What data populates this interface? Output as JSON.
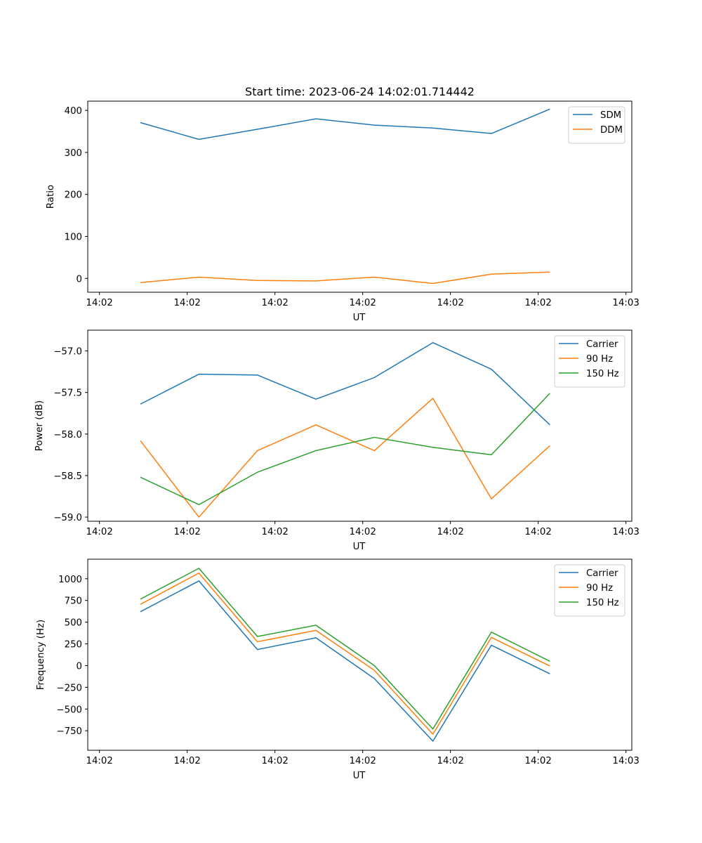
{
  "chart_data": [
    {
      "type": "line",
      "title": "Start time: 2023-06-24 14:02:01.714442",
      "xlabel": "UT",
      "ylabel": "Ratio",
      "x_tick_labels": [
        "14:02",
        "14:02",
        "14:02",
        "14:02",
        "14:02",
        "14:02",
        "14:03"
      ],
      "x_samples": [
        1,
        2,
        3,
        4,
        5,
        6,
        7,
        8
      ],
      "xlim": [
        0.1,
        9.4
      ],
      "ylim": [
        -33,
        422
      ],
      "y_ticks": [
        0,
        100,
        200,
        300,
        400
      ],
      "grid": false,
      "legend_position": "top-right",
      "series": [
        {
          "name": "SDM",
          "color": "#1f77b4",
          "values": [
            371,
            331,
            355,
            380,
            365,
            358,
            345,
            403
          ]
        },
        {
          "name": "DDM",
          "color": "#ff7f0e",
          "values": [
            -10,
            3,
            -5,
            -6,
            3,
            -12,
            10,
            15
          ]
        }
      ]
    },
    {
      "type": "line",
      "title": "",
      "xlabel": "UT",
      "ylabel": "Power (dB)",
      "x_tick_labels": [
        "14:02",
        "14:02",
        "14:02",
        "14:02",
        "14:02",
        "14:02",
        "14:03"
      ],
      "x_samples": [
        1,
        2,
        3,
        4,
        5,
        6,
        7,
        8
      ],
      "xlim": [
        0.1,
        9.4
      ],
      "ylim": [
        -59.05,
        -56.75
      ],
      "y_ticks": [
        -59.0,
        -58.5,
        -58.0,
        -57.5,
        -57.0
      ],
      "y_tick_labels": [
        "−59.0",
        "−58.5",
        "−58.0",
        "−57.5",
        "−57.0"
      ],
      "grid": false,
      "legend_position": "top-right",
      "series": [
        {
          "name": "Carrier",
          "color": "#1f77b4",
          "values": [
            -57.64,
            -57.28,
            -57.29,
            -57.58,
            -57.32,
            -56.9,
            -57.22,
            -57.89
          ]
        },
        {
          "name": "90 Hz",
          "color": "#ff7f0e",
          "values": [
            -58.08,
            -59.0,
            -58.2,
            -57.89,
            -58.2,
            -57.57,
            -58.78,
            -58.14
          ]
        },
        {
          "name": "150 Hz",
          "color": "#2ca02c",
          "values": [
            -58.52,
            -58.85,
            -58.46,
            -58.2,
            -58.04,
            -58.16,
            -58.25,
            -57.51
          ]
        }
      ]
    },
    {
      "type": "line",
      "title": "",
      "xlabel": "UT",
      "ylabel": "Frequency (Hz)",
      "x_tick_labels": [
        "14:02",
        "14:02",
        "14:02",
        "14:02",
        "14:02",
        "14:02",
        "14:03"
      ],
      "x_samples": [
        1,
        2,
        3,
        4,
        5,
        6,
        7,
        8
      ],
      "xlim": [
        0.1,
        9.4
      ],
      "ylim": [
        -975,
        1225
      ],
      "y_ticks": [
        -750,
        -500,
        -250,
        0,
        250,
        500,
        750,
        1000
      ],
      "y_tick_labels": [
        "−750",
        "−500",
        "−250",
        "0",
        "250",
        "500",
        "750",
        "1000"
      ],
      "grid": false,
      "legend_position": "top-right",
      "series": [
        {
          "name": "Carrier",
          "color": "#1f77b4",
          "values": [
            620,
            975,
            185,
            320,
            -150,
            -870,
            235,
            -95
          ]
        },
        {
          "name": "90 Hz",
          "color": "#ff7f0e",
          "values": [
            705,
            1065,
            275,
            405,
            -55,
            -790,
            325,
            -5
          ]
        },
        {
          "name": "150 Hz",
          "color": "#2ca02c",
          "values": [
            765,
            1120,
            335,
            465,
            0,
            -730,
            385,
            50
          ]
        }
      ]
    }
  ]
}
